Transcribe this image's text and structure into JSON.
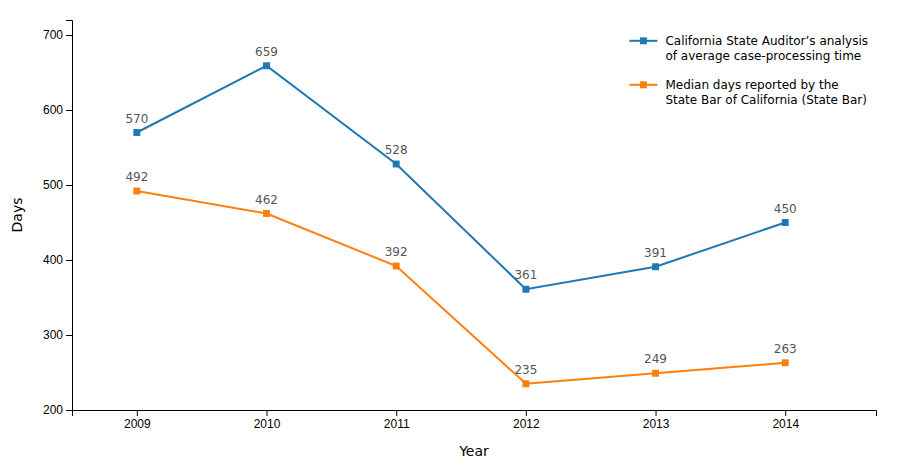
{
  "chart_data": {
    "type": "line",
    "x": [
      2009,
      2010,
      2011,
      2012,
      2013,
      2014
    ],
    "xlim": [
      2008.5,
      2014.7
    ],
    "xticks": [
      2009,
      2010,
      2011,
      2012,
      2013,
      2014
    ],
    "ylim": [
      200,
      720
    ],
    "yticks": [
      200,
      300,
      400,
      500,
      600,
      700
    ],
    "xlabel": "Year",
    "ylabel": "Days",
    "series": [
      {
        "name": "California State Auditor’s analysis\nof average case-processing time",
        "values": [
          570,
          659,
          528,
          361,
          391,
          450
        ],
        "marker": "square"
      },
      {
        "name": "Median days reported by the\nState Bar of California (State Bar)",
        "values": [
          492,
          462,
          392,
          235,
          249,
          263
        ],
        "marker": "square"
      }
    ],
    "data_labels": true,
    "legend": "upper right",
    "grid": false
  }
}
